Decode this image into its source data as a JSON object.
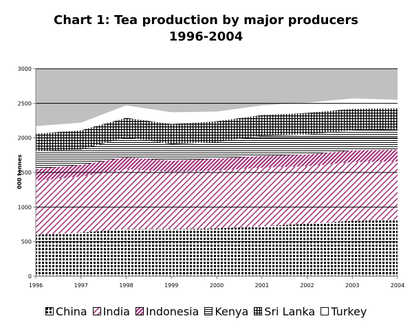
{
  "chart_data": {
    "type": "area",
    "stacked": true,
    "title_lines": [
      "Chart 1: Tea production by major producers",
      "1996-2004"
    ],
    "xlabel": "",
    "ylabel": "000 tonnes",
    "x": [
      "1996",
      "1997",
      "1998",
      "1999",
      "2000",
      "2001",
      "2002",
      "2003",
      "2004"
    ],
    "ylim": [
      0,
      3000
    ],
    "yticks": [
      "0",
      "500",
      "1000",
      "1500",
      "2000",
      "2500",
      "3000"
    ],
    "gridlines": true,
    "legend_position": "bottom",
    "series": [
      {
        "name": "China",
        "color": "#000000",
        "pattern": "dots",
        "values": [
          600,
          630,
          680,
          680,
          690,
          720,
          760,
          800,
          820
        ]
      },
      {
        "name": "India",
        "color": "#a0337a",
        "pattern": "diagonal-light",
        "values": [
          780,
          810,
          870,
          830,
          840,
          850,
          830,
          850,
          840
        ]
      },
      {
        "name": "Indonesia",
        "color": "#a0337a",
        "pattern": "diagonal-dense",
        "values": [
          170,
          170,
          170,
          160,
          170,
          170,
          170,
          170,
          170
        ]
      },
      {
        "name": "Kenya",
        "color": "#000000",
        "pattern": "horizontal",
        "values": [
          260,
          220,
          290,
          240,
          240,
          290,
          290,
          290,
          290
        ]
      },
      {
        "name": "Sri Lanka",
        "color": "#000000",
        "pattern": "grid",
        "values": [
          250,
          280,
          280,
          290,
          300,
          300,
          310,
          310,
          310
        ]
      },
      {
        "name": "Turkey",
        "color": "#ffffff",
        "pattern": "solid",
        "values": [
          110,
          110,
          180,
          170,
          140,
          140,
          150,
          150,
          120
        ]
      }
    ],
    "colors": {
      "plot_background": "#c0c0c0",
      "axis": "#808080"
    }
  }
}
